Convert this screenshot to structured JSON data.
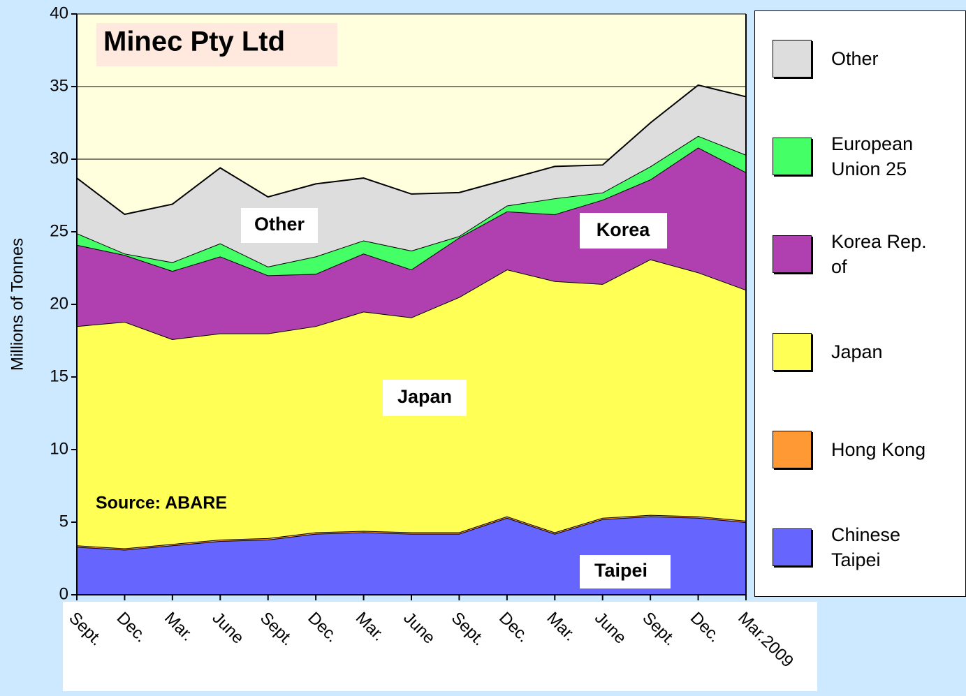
{
  "chart_data": {
    "type": "stacked_area",
    "y_label": "Millions of Tonnes",
    "annotations": [
      "Minec Pty Ltd",
      "Other",
      "Korea",
      "Japan",
      "Source: ABARE",
      "Taipei"
    ],
    "categories": [
      "Sept.",
      "Dec.",
      "Mar.",
      "June",
      "Sept.",
      "Dec.",
      "Mar.",
      "June",
      "Sept.",
      "Dec.",
      "Mar.",
      "June",
      "Sept.",
      "Dec.",
      "Mar.2009"
    ],
    "series": [
      {
        "name": "Chinese Taipei",
        "color": "#6666ff",
        "values": [
          3.3,
          3.1,
          3.4,
          3.7,
          3.8,
          4.2,
          4.3,
          4.2,
          4.2,
          5.3,
          4.2,
          5.2,
          5.4,
          5.3,
          5.0
        ]
      },
      {
        "name": "Hong Kong",
        "color": "#ff9933",
        "values": [
          0.1,
          0.1,
          0.1,
          0.1,
          0.1,
          0.1,
          0.1,
          0.1,
          0.1,
          0.1,
          0.1,
          0.1,
          0.1,
          0.1,
          0.1
        ]
      },
      {
        "name": "Japan",
        "color": "#ffff55",
        "values": [
          15.1,
          15.6,
          14.1,
          14.2,
          14.1,
          14.2,
          15.1,
          14.8,
          16.2,
          17.0,
          17.3,
          16.1,
          17.6,
          16.8,
          15.9
        ]
      },
      {
        "name": "Korea Rep. of",
        "color": "#b040b0",
        "values": [
          5.6,
          4.6,
          4.7,
          5.3,
          4.0,
          3.6,
          4.0,
          3.3,
          4.1,
          4.0,
          4.6,
          5.8,
          5.5,
          8.6,
          8.1
        ]
      },
      {
        "name": "European Union 25",
        "color": "#44ff66",
        "values": [
          0.8,
          0.1,
          0.6,
          0.9,
          0.6,
          1.2,
          0.9,
          1.3,
          0.1,
          0.4,
          1.1,
          0.5,
          0.9,
          0.8,
          1.2
        ]
      },
      {
        "name": "Other",
        "color": "#dddddd",
        "values": [
          3.8,
          2.7,
          4.0,
          5.2,
          4.8,
          5.0,
          4.3,
          3.9,
          3.0,
          1.8,
          2.2,
          1.9,
          3.0,
          3.5,
          4.0
        ]
      }
    ],
    "ylim": [
      0,
      40
    ],
    "yticks": [
      0,
      5,
      10,
      15,
      20,
      25,
      30,
      35,
      40
    ],
    "grid": true
  }
}
